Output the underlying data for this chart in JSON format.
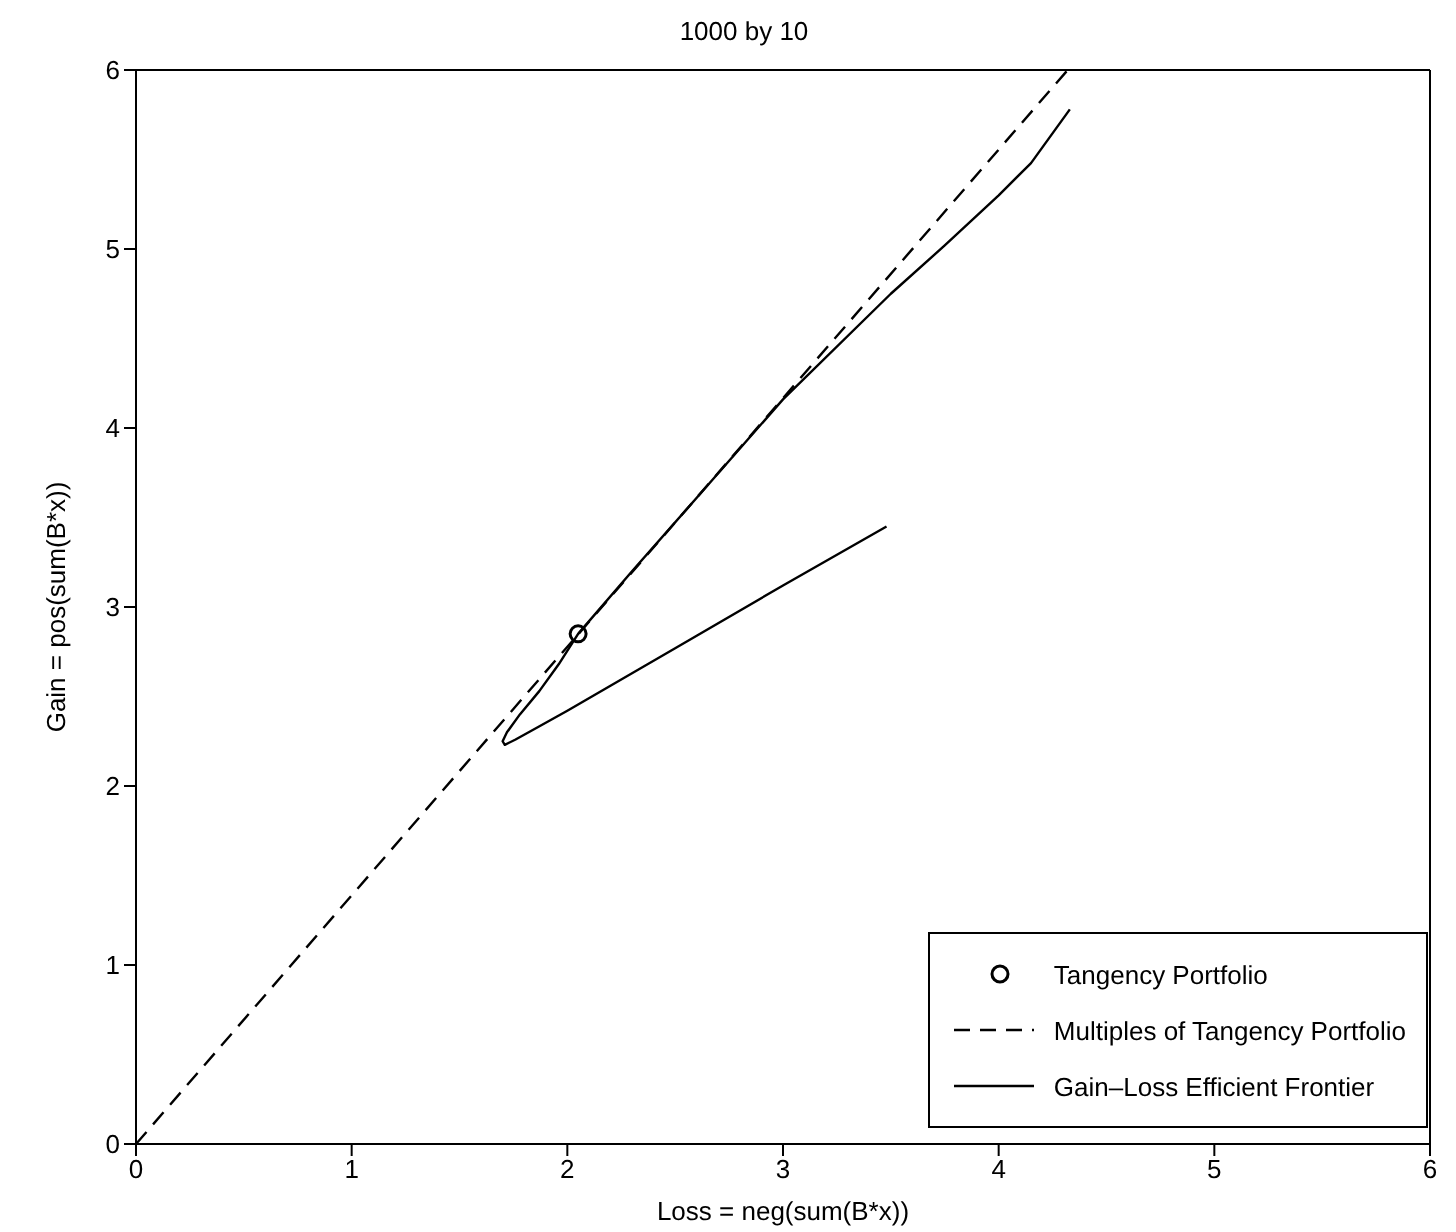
{
  "chart_data": {
    "type": "line",
    "title": "1000 by 10",
    "xlabel": "Loss  =  neg(sum(B*x))",
    "ylabel": "Gain  =  pos(sum(B*x))",
    "xlim": [
      0,
      6
    ],
    "ylim": [
      0,
      6
    ],
    "xticks": [
      0,
      1,
      2,
      3,
      4,
      5,
      6
    ],
    "yticks": [
      0,
      1,
      2,
      3,
      4,
      5,
      6
    ],
    "grid": false,
    "legend": "bottom right",
    "series": [
      {
        "name": "Tangency Portfolio",
        "type": "scatter",
        "marker": "circle",
        "color": "#000000",
        "x": [
          2.05
        ],
        "values": [
          2.85
        ]
      },
      {
        "name": "Multiples of Tangency Portfolio",
        "type": "line",
        "line_style": "dashed",
        "color": "#000000",
        "x": [
          0,
          4.32
        ],
        "values": [
          0,
          6
        ]
      },
      {
        "name": "Gain–Loss Efficient Frontier",
        "type": "line",
        "line_style": "solid",
        "color": "#000000",
        "x": [
          3.48,
          3.0,
          2.5,
          2.2,
          2.0,
          1.85,
          1.76,
          1.71,
          1.7,
          1.72,
          1.78,
          1.87,
          1.96,
          2.05,
          2.3,
          2.6,
          3.0,
          3.5,
          3.75,
          4.0,
          4.15,
          4.33
        ],
        "values": [
          3.45,
          3.12,
          2.77,
          2.56,
          2.42,
          2.32,
          2.26,
          2.23,
          2.25,
          2.3,
          2.4,
          2.53,
          2.68,
          2.85,
          3.2,
          3.61,
          4.16,
          4.75,
          5.02,
          5.3,
          5.48,
          5.78
        ]
      }
    ]
  }
}
